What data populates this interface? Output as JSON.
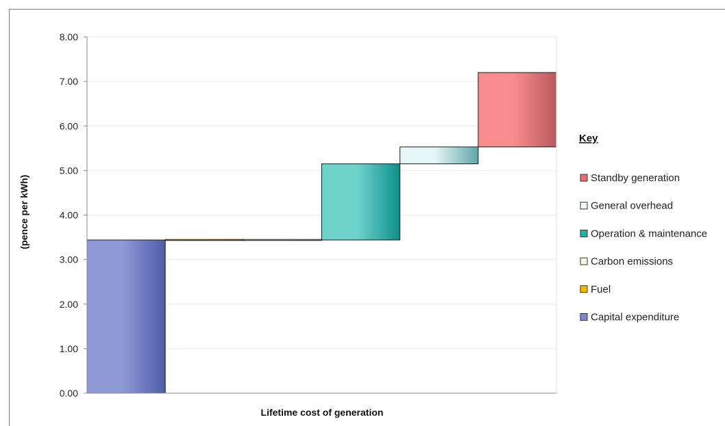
{
  "chart_data": {
    "type": "waterfall",
    "title": "",
    "xlabel": "Lifetime cost of generation",
    "ylabel": "(pence per kWh)",
    "ylim": [
      0,
      8
    ],
    "yticks": [
      "0.00",
      "1.00",
      "2.00",
      "3.00",
      "4.00",
      "5.00",
      "6.00",
      "7.00",
      "8.00"
    ],
    "grid": true,
    "legend_title": "Key",
    "legend_placement": "right",
    "steps": [
      {
        "name": "Capital expenditure",
        "start": 0.0,
        "end": 3.44,
        "color_light": "#8f99d6",
        "color_dark": "#4f5eaa"
      },
      {
        "name": "Fuel",
        "start": 3.44,
        "end": 3.44,
        "color_light": "#f5c22e",
        "color_dark": "#d99a00"
      },
      {
        "name": "Carbon emissions",
        "start": 3.44,
        "end": 3.44,
        "color_light": "#f2f7d9",
        "color_dark": "#c9d6a0"
      },
      {
        "name": "Operation & maintenance",
        "start": 3.44,
        "end": 5.15,
        "color_light": "#6fd3cc",
        "color_dark": "#0e8f8a"
      },
      {
        "name": "General overhead",
        "start": 5.15,
        "end": 5.53,
        "color_light": "#e6f5f5",
        "color_dark": "#5fa7aa"
      },
      {
        "name": "Standby generation",
        "start": 5.53,
        "end": 7.2,
        "color_light": "#f98c8c",
        "color_dark": "#b85a5f"
      }
    ],
    "legend": [
      {
        "label": "Standby generation",
        "color": "#e86f74"
      },
      {
        "label": "General overhead",
        "color": "#eef8f8"
      },
      {
        "label": "Operation & maintenance",
        "color": "#1fb3ab"
      },
      {
        "label": "Carbon emissions",
        "color": "#f3f8dc"
      },
      {
        "label": "Fuel",
        "color": "#f5b800"
      },
      {
        "label": "Capital expenditure",
        "color": "#7c87cf"
      }
    ]
  }
}
